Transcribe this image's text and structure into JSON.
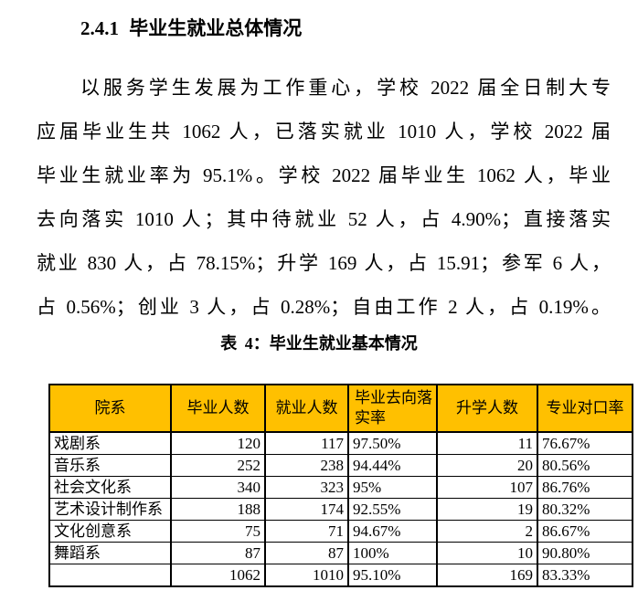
{
  "page": {
    "heading": "2.4.1 毕业生就业总体情况",
    "paragraph_lines": [
      "以服务学生发展为工作重心，学校 2022 届全日制大专",
      "应届毕业生共 1062 人，已落实就业 1010 人，学校 2022 届",
      "毕业生就业率为 95.1%。学校 2022 届毕业生 1062 人，毕业",
      "去向落实 1010 人；其中待就业 52 人，占 4.90%；直接落实",
      "就业 830 人，占 78.15%；升学 169 人，占 15.91；参军 6 人，",
      "占 0.56%；创业 3 人，占 0.28%；自由工作 2 人，占 0.19%。"
    ],
    "table_caption": "表 4：毕业生就业基本情况"
  },
  "table": {
    "headers": [
      "院系",
      "毕业人数",
      "就业人数",
      "毕业去向落实率",
      "升学人数",
      "专业对口率"
    ],
    "rows": [
      [
        "戏剧系",
        "120",
        "117",
        "97.50%",
        "11",
        "76.67%"
      ],
      [
        "音乐系",
        "252",
        "238",
        "94.44%",
        "20",
        "80.56%"
      ],
      [
        "社会文化系",
        "340",
        "323",
        "95%",
        "107",
        "86.76%"
      ],
      [
        "艺术设计制作系",
        "188",
        "174",
        "92.55%",
        "19",
        "80.32%"
      ],
      [
        "文化创意系",
        "75",
        "71",
        "94.67%",
        "2",
        "86.67%"
      ],
      [
        "舞蹈系",
        "87",
        "87",
        "100%",
        "10",
        "90.80%"
      ],
      [
        "",
        "1062",
        "1010",
        "95.10%",
        "169",
        "83.33%"
      ]
    ]
  },
  "colors": {
    "table_header_bg": "#FFC000",
    "table_border": "#000000",
    "text": "#000000",
    "page_bg": "#FFFFFF"
  }
}
